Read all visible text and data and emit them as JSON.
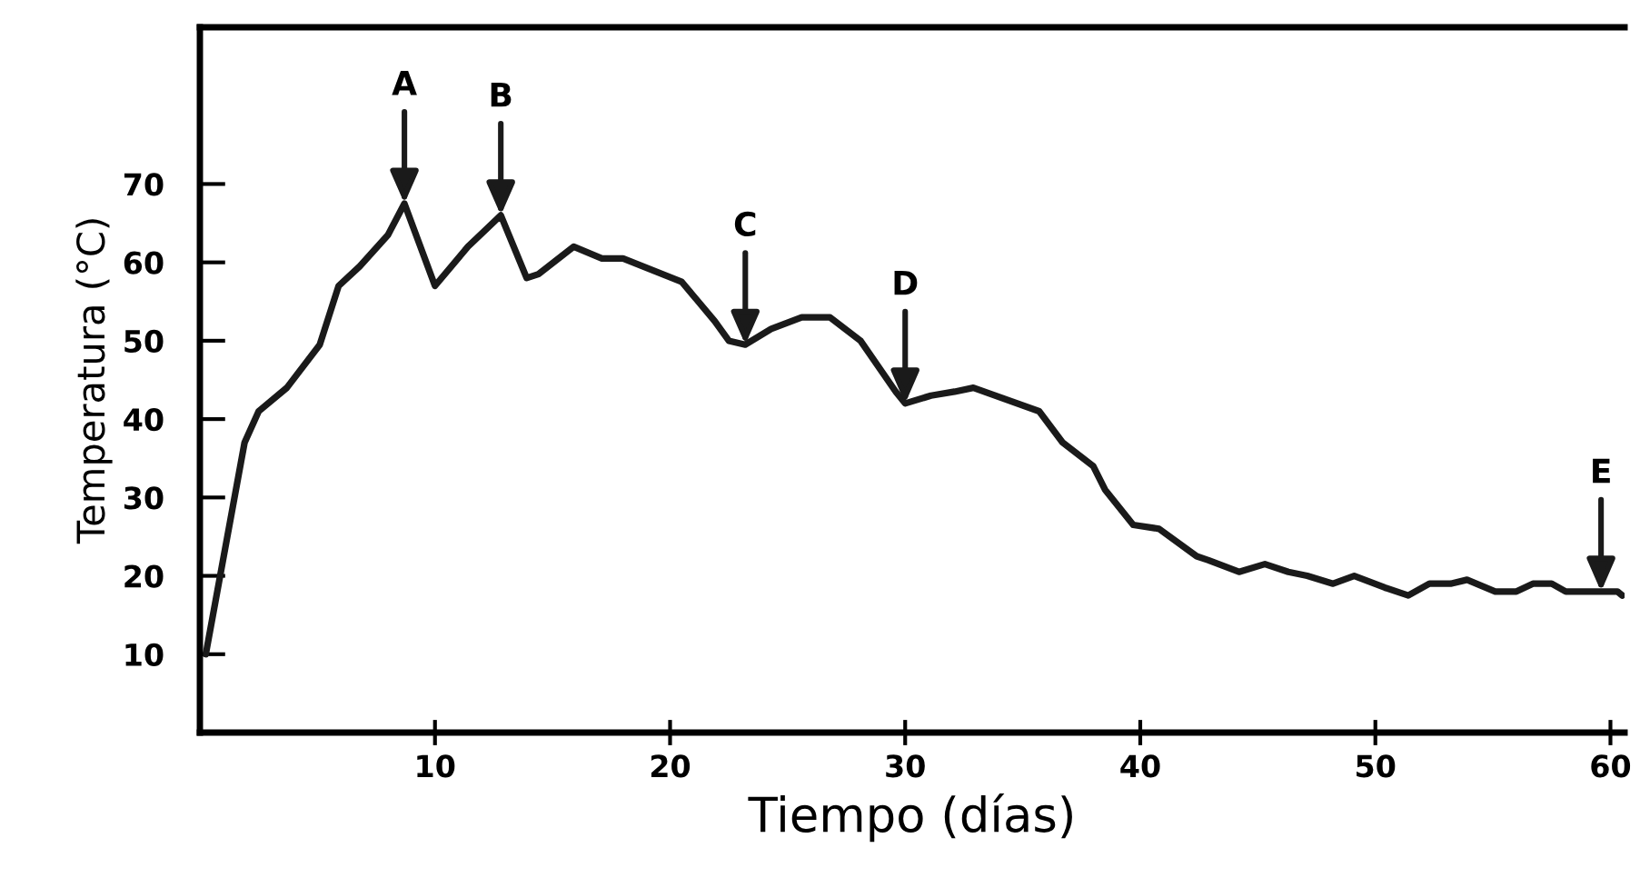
{
  "chart_data": {
    "type": "line",
    "xlabel": "Tiempo (días)",
    "ylabel": "Temperatura (°C)",
    "xlim": [
      0,
      60.6
    ],
    "ylim": [
      0,
      90
    ],
    "xticks": [
      10,
      20,
      30,
      40,
      50,
      60
    ],
    "yticks": [
      10,
      20,
      30,
      40,
      50,
      60,
      70
    ],
    "grid": false,
    "marker": "none",
    "line_style": "solid",
    "series": [
      {
        "color": "#1a1a1a",
        "x": [
          0.25,
          1.9,
          2.5,
          3.7,
          5.1,
          5.9,
          6.8,
          8.0,
          8.7,
          10.0,
          11.4,
          12.8,
          13.9,
          14.4,
          15.9,
          17.1,
          18.0,
          20.5,
          21.9,
          22.5,
          23.2,
          24.3,
          25.6,
          26.8,
          28.1,
          29.6,
          30.0,
          31.1,
          32.1,
          32.9,
          35.7,
          36.7,
          38.0,
          38.5,
          39.7,
          40.8,
          42.4,
          42.9,
          44.2,
          45.3,
          46.3,
          47.1,
          48.2,
          49.1,
          50.4,
          51.4,
          52.3,
          53.2,
          53.9,
          55.1,
          56.0,
          56.7,
          57.5,
          58.1,
          60.3,
          60.5
        ],
        "values": [
          10,
          37,
          41,
          44,
          49.5,
          57,
          59.5,
          63.5,
          67.5,
          57,
          62,
          66,
          58,
          58.5,
          62,
          60.5,
          60.5,
          57.5,
          52.5,
          50,
          49.5,
          51.5,
          53,
          53,
          50,
          43.5,
          42,
          43,
          43.5,
          44,
          41,
          37,
          34,
          31,
          26.5,
          26,
          22.5,
          22,
          20.5,
          21.5,
          20.5,
          20,
          19,
          20,
          18.5,
          17.5,
          19,
          19,
          19.5,
          18,
          18,
          19,
          19,
          18,
          18,
          17.5
        ]
      }
    ],
    "annotations": [
      {
        "text": "A",
        "x": 8.7,
        "y": 67.5
      },
      {
        "text": "B",
        "x": 12.8,
        "y": 66
      },
      {
        "text": "C",
        "x": 23.2,
        "y": 49.5
      },
      {
        "text": "D",
        "x": 30.0,
        "y": 42
      },
      {
        "text": "E",
        "x": 59.6,
        "y": 18
      }
    ]
  }
}
